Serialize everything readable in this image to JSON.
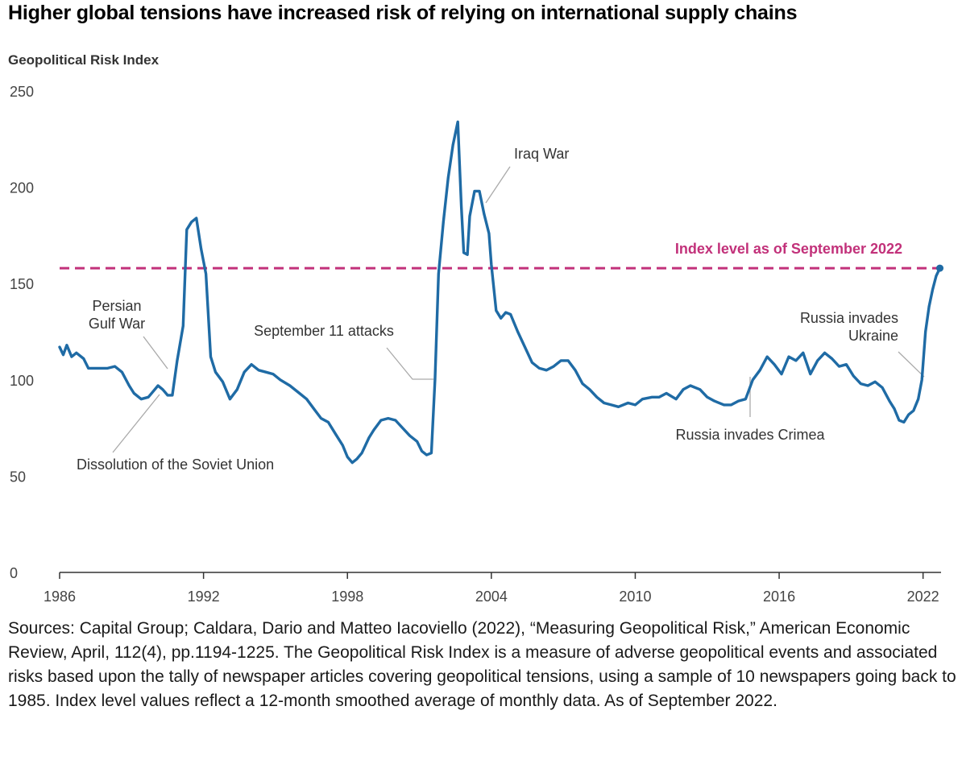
{
  "title": "Higher global tensions have increased risk of relying on international supply chains",
  "source_note": "Sources: Capital Group; Caldara, Dario and Matteo Iacoviello (2022), “Measuring Geopolitical Risk,” American Economic Review, April, 112(4), pp.1194-1225. The Geopolitical Risk Index is a measure of adverse geopolitical events and associated risks based upon the tally of newspaper articles covering geopolitical tensions, using a sample of 10 newspapers going back to 1985. Index level values reflect a 12-month smoothed average of monthly data. As of September 2022.",
  "colors": {
    "line": "#1f6ba5",
    "reference": "#c2317a",
    "axis": "#333333",
    "tick_text": "#444444",
    "annotation_text": "#333333",
    "leader": "#aaaaaa"
  },
  "chart_data": {
    "type": "line",
    "title": "Geopolitical Risk Index",
    "xlabel": "",
    "ylabel": "Geopolitical Risk Index",
    "xlim": [
      1986,
      2022.75
    ],
    "ylim": [
      0,
      250
    ],
    "x_ticks": [
      "1986",
      "1992",
      "1998",
      "2004",
      "2010",
      "2016",
      "2022"
    ],
    "y_ticks": [
      "0",
      "50",
      "100",
      "150",
      "200",
      "250"
    ],
    "grid": false,
    "series": [
      {
        "name": "Geopolitical Risk Index",
        "x": [
          1986.0,
          1986.15,
          1986.3,
          1986.5,
          1986.7,
          1987.0,
          1987.2,
          1987.5,
          1988.0,
          1988.3,
          1988.6,
          1988.9,
          1989.1,
          1989.4,
          1989.7,
          1989.9,
          1990.1,
          1990.3,
          1990.5,
          1990.7,
          1990.9,
          1991.15,
          1991.3,
          1991.5,
          1991.7,
          1991.9,
          1992.1,
          1992.3,
          1992.5,
          1992.8,
          1993.1,
          1993.4,
          1993.7,
          1994.0,
          1994.3,
          1994.6,
          1994.9,
          1995.2,
          1995.6,
          1996.0,
          1996.3,
          1996.6,
          1996.9,
          1997.2,
          1997.5,
          1997.8,
          1998.0,
          1998.2,
          1998.4,
          1998.6,
          1998.9,
          1999.1,
          1999.4,
          1999.7,
          2000.0,
          2000.3,
          2000.6,
          2000.9,
          2001.1,
          2001.3,
          2001.5,
          2001.65,
          2001.8,
          2002.0,
          2002.2,
          2002.4,
          2002.6,
          2002.75,
          2002.85,
          2003.0,
          2003.1,
          2003.3,
          2003.5,
          2003.7,
          2003.9,
          2004.0,
          2004.2,
          2004.4,
          2004.6,
          2004.8,
          2005.1,
          2005.4,
          2005.7,
          2006.0,
          2006.3,
          2006.6,
          2006.9,
          2007.2,
          2007.5,
          2007.8,
          2008.1,
          2008.4,
          2008.7,
          2009.0,
          2009.3,
          2009.7,
          2010.0,
          2010.3,
          2010.7,
          2011.0,
          2011.3,
          2011.7,
          2012.0,
          2012.3,
          2012.7,
          2013.0,
          2013.3,
          2013.7,
          2014.0,
          2014.3,
          2014.6,
          2014.9,
          2015.2,
          2015.5,
          2015.8,
          2016.1,
          2016.4,
          2016.7,
          2017.0,
          2017.3,
          2017.6,
          2017.9,
          2018.2,
          2018.5,
          2018.8,
          2019.1,
          2019.4,
          2019.7,
          2020.0,
          2020.3,
          2020.6,
          2020.8,
          2021.0,
          2021.2,
          2021.4,
          2021.6,
          2021.8,
          2021.95,
          2022.1,
          2022.25,
          2022.4,
          2022.55,
          2022.7
        ],
        "values": [
          117,
          113,
          118,
          112,
          114,
          111,
          106,
          106,
          106,
          107,
          104,
          97,
          93,
          90,
          91,
          94,
          97,
          95,
          92,
          92,
          110,
          128,
          178,
          182,
          184,
          168,
          155,
          112,
          104,
          99,
          90,
          95,
          104,
          108,
          105,
          104,
          103,
          100,
          97,
          93,
          90,
          85,
          80,
          78,
          72,
          66,
          60,
          57,
          59,
          62,
          70,
          74,
          79,
          80,
          79,
          75,
          71,
          68,
          63,
          61,
          62,
          100,
          155,
          182,
          205,
          222,
          234,
          190,
          166,
          165,
          185,
          198,
          198,
          186,
          176,
          160,
          136,
          132,
          135,
          134,
          125,
          117,
          109,
          106,
          105,
          107,
          110,
          110,
          105,
          98,
          95,
          91,
          88,
          87,
          86,
          88,
          87,
          90,
          91,
          91,
          93,
          90,
          95,
          97,
          95,
          91,
          89,
          87,
          87,
          89,
          90,
          100,
          105,
          112,
          108,
          103,
          112,
          110,
          114,
          103,
          110,
          114,
          111,
          107,
          108,
          102,
          98,
          97,
          99,
          96,
          89,
          85,
          79,
          78,
          82,
          84,
          90,
          100,
          125,
          138,
          147,
          154,
          158
        ]
      }
    ],
    "reference_line": {
      "label": "Index level as of September 2022",
      "value": 158
    },
    "annotations": [
      {
        "id": "persian-gulf-war",
        "lines": [
          "Persian",
          "Gulf War"
        ],
        "x": 1990.8,
        "y": 105,
        "align": "middle"
      },
      {
        "id": "dissolution-soviet-union",
        "lines": [
          "Dissolution of the Soviet Union"
        ],
        "x": 1990.6,
        "y": 95,
        "align": "start"
      },
      {
        "id": "september-11",
        "lines": [
          "September 11 attacks"
        ],
        "x": 2001.65,
        "y": 100,
        "align": "middle"
      },
      {
        "id": "iraq-war",
        "lines": [
          "Iraq War"
        ],
        "x": 2003.6,
        "y": 196,
        "align": "start"
      },
      {
        "id": "russia-crimea",
        "lines": [
          "Russia invades Crimea"
        ],
        "x": 2014.4,
        "y": 101,
        "align": "middle"
      },
      {
        "id": "russia-ukraine",
        "lines": [
          "Russia invades",
          "Ukraine"
        ],
        "x": 2022.1,
        "y": 100,
        "align": "end"
      }
    ]
  }
}
